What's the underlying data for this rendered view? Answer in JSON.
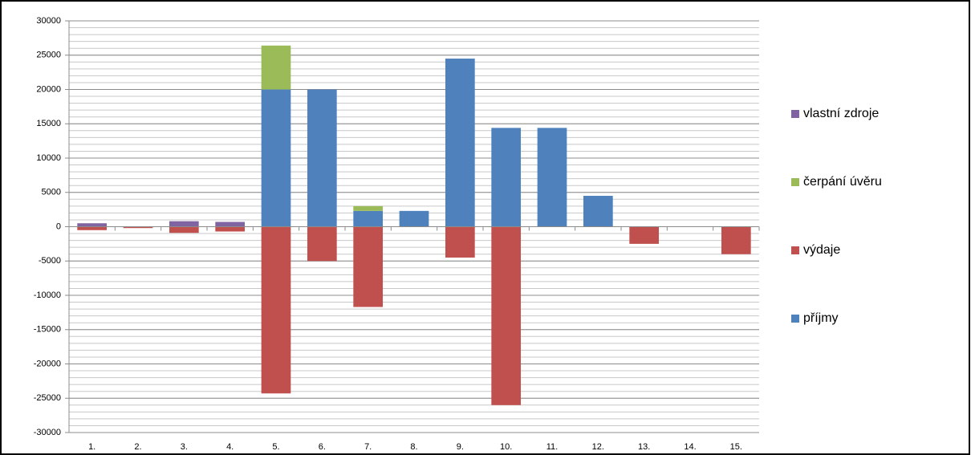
{
  "chart_data": {
    "type": "stacked_bar",
    "categories": [
      "1.",
      "2.",
      "3.",
      "4.",
      "5.",
      "6.",
      "7.",
      "8.",
      "9.",
      "10.",
      "11.",
      "12.",
      "13.",
      "14.",
      "15."
    ],
    "series": [
      {
        "name": "příjmy",
        "color": "#4f81bd",
        "values": [
          null,
          null,
          null,
          null,
          20000,
          20000,
          2300,
          2300,
          24500,
          14400,
          14400,
          4500,
          null,
          null,
          null
        ]
      },
      {
        "name": "výdaje",
        "color": "#c0504d",
        "values": [
          -500,
          -200,
          -900,
          -700,
          -24300,
          -5000,
          -11700,
          null,
          -4500,
          -26000,
          null,
          null,
          -2500,
          null,
          -4000
        ]
      },
      {
        "name": "čerpání úvěru",
        "color": "#9bbb59",
        "values": [
          null,
          null,
          null,
          null,
          6400,
          null,
          700,
          null,
          null,
          null,
          null,
          null,
          null,
          null,
          null
        ]
      },
      {
        "name": "vlastní zdroje",
        "color": "#8064a2",
        "values": [
          500,
          null,
          800,
          700,
          null,
          null,
          null,
          null,
          null,
          null,
          null,
          null,
          null,
          null,
          null
        ]
      }
    ],
    "ylim": [
      -30000,
      30000
    ],
    "yticks": [
      -30000,
      -25000,
      -20000,
      -15000,
      -10000,
      -5000,
      0,
      5000,
      10000,
      15000,
      20000,
      25000,
      30000
    ],
    "grid": true,
    "minor_grid_step": 1000,
    "legend": "right",
    "legend_reversed": true
  }
}
